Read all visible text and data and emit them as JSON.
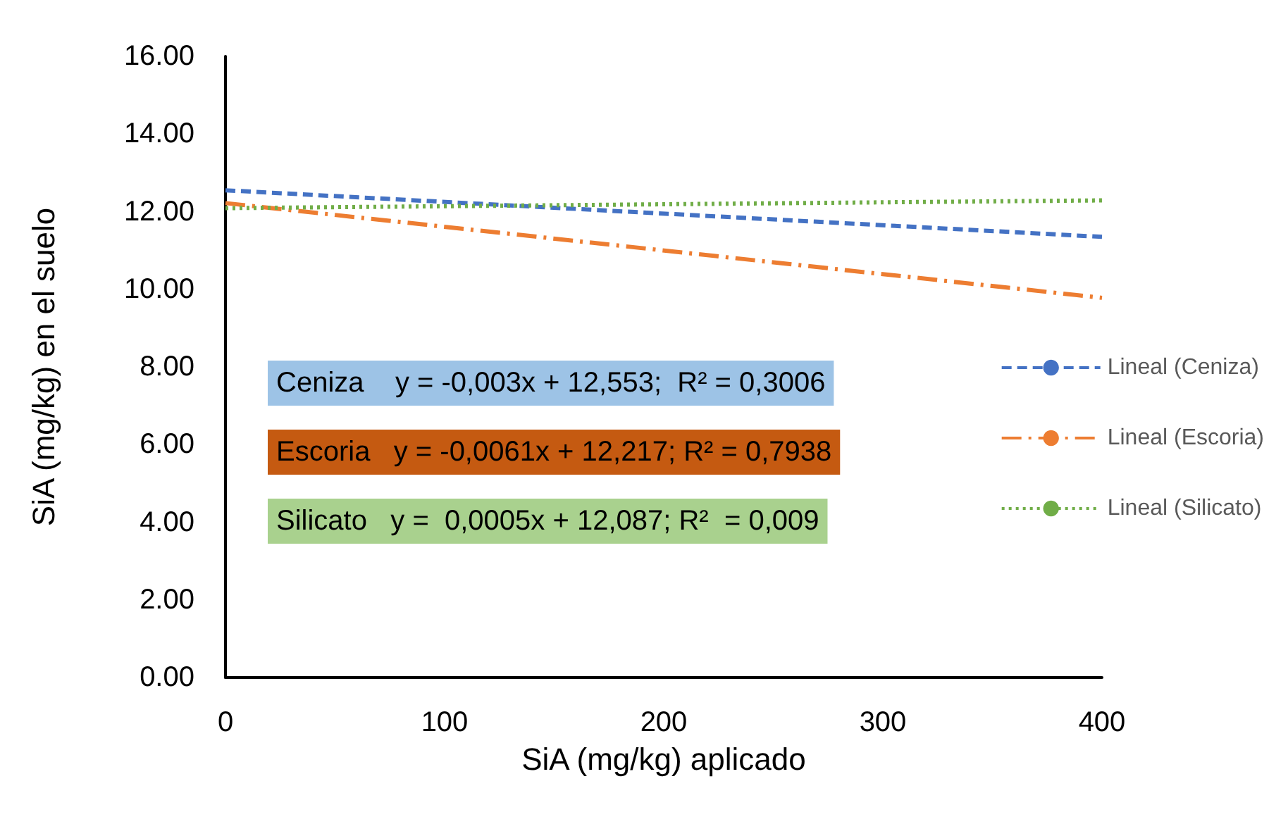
{
  "chart_data": {
    "type": "line",
    "xlabel": "SiA (mg/kg) aplicado",
    "ylabel": "SiA (mg/kg) en el suelo",
    "x": [
      0,
      400
    ],
    "series": [
      {
        "name": "Lineal (Ceniza)",
        "color": "#4472c4",
        "values": [
          12.55,
          11.35
        ],
        "line_style": "dashed"
      },
      {
        "name": "Lineal (Escoria)",
        "color": "#ed7d31",
        "values": [
          12.22,
          9.78
        ],
        "line_style": "dashdot"
      },
      {
        "name": "Lineal (Silicato)",
        "color": "#70ad47",
        "values": [
          12.09,
          12.29
        ],
        "line_style": "dotted"
      }
    ],
    "annotations": [
      "Ceniza    y = -0,003x + 12,553;  R² = 0,3006",
      "Escoria   y = -0,0061x + 12,217; R² = 0,7938",
      "Silicato   y =  0,0005x + 12,087; R²  = 0,009"
    ],
    "xlim": [
      0,
      400
    ],
    "xticks": [
      0,
      100,
      200,
      300,
      400
    ],
    "ylim": [
      0,
      16
    ],
    "yticks": [
      {
        "value": 0,
        "label": "0.00"
      },
      {
        "value": 2,
        "label": "2.00"
      },
      {
        "value": 4,
        "label": "4.00"
      },
      {
        "value": 6,
        "label": "6.00"
      },
      {
        "value": 8,
        "label": "8.00"
      },
      {
        "value": 10,
        "label": "10.00"
      },
      {
        "value": 12,
        "label": "12.00"
      },
      {
        "value": 14,
        "label": "14.00"
      },
      {
        "value": 16,
        "label": "16.00"
      }
    ],
    "grid": false,
    "legend": "right",
    "marker": "none"
  }
}
